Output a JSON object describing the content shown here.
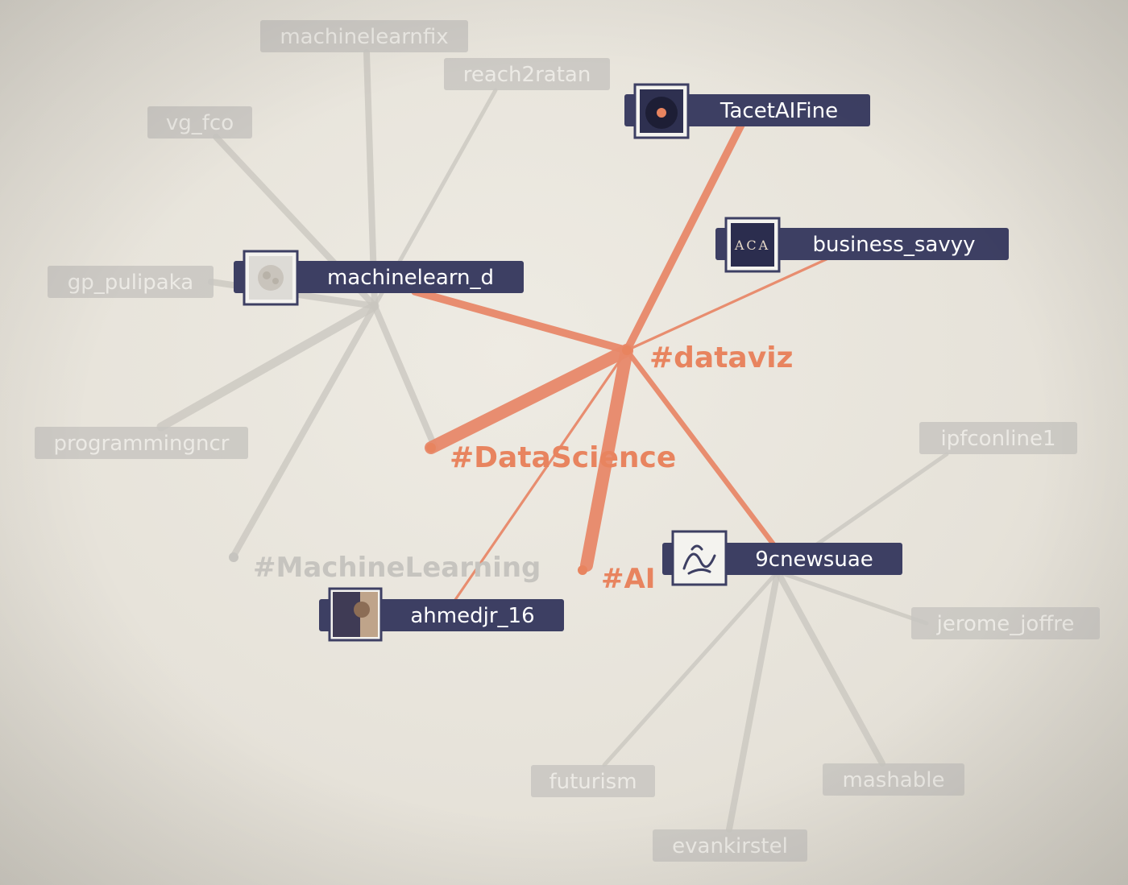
{
  "colors": {
    "background": "#e7e4dc",
    "dim_edge": "#c9c6bf",
    "dim_label_bg": "#c8c6c1",
    "dim_label_text": "#eceae5",
    "active_edge": "#e8896a",
    "active_label_bg": "#3d3f63",
    "active_label_text": "#ffffff",
    "hashtag_active": "#e8845f",
    "hashtag_dim": "#c6c4bf"
  },
  "nodes": {
    "machinelearnfix": {
      "label": "machinelearnfix",
      "kind": "user",
      "state": "dim"
    },
    "reach2ratan": {
      "label": "reach2ratan",
      "kind": "user",
      "state": "dim"
    },
    "vg_fco": {
      "label": "vg_fco",
      "kind": "user",
      "state": "dim"
    },
    "gp_pulipaka": {
      "label": "gp_pulipaka",
      "kind": "user",
      "state": "dim"
    },
    "programmingncr": {
      "label": "programmingncr",
      "kind": "user",
      "state": "dim"
    },
    "ipfconline1": {
      "label": "ipfconline1",
      "kind": "user",
      "state": "dim"
    },
    "jerome_joffre": {
      "label": "jerome_joffre",
      "kind": "user",
      "state": "dim"
    },
    "futurism": {
      "label": "futurism",
      "kind": "user",
      "state": "dim"
    },
    "mashable": {
      "label": "mashable",
      "kind": "user",
      "state": "dim"
    },
    "evankirstel": {
      "label": "evankirstel",
      "kind": "user",
      "state": "dim"
    },
    "TacetAIFine": {
      "label": "TacetAIFine",
      "kind": "user",
      "state": "active",
      "avatar": "record-avatar-icon"
    },
    "business_savyy": {
      "label": "business_savyy",
      "kind": "user",
      "state": "active",
      "avatar": "aca-logo-avatar-icon"
    },
    "machinelearn_d": {
      "label": "machinelearn_d",
      "kind": "user",
      "state": "active",
      "avatar": "brain-avatar-icon"
    },
    "9cnewsuae": {
      "label": "9cnewsuae",
      "kind": "user",
      "state": "active",
      "avatar": "signature-avatar-icon"
    },
    "ahmedjr_16": {
      "label": "ahmedjr_16",
      "kind": "user",
      "state": "active",
      "avatar": "portrait-avatar-icon"
    },
    "dataviz": {
      "label": "#dataviz",
      "kind": "hashtag",
      "state": "active"
    },
    "DataScience": {
      "label": "#DataScience",
      "kind": "hashtag",
      "state": "active"
    },
    "AI": {
      "label": "#AI",
      "kind": "hashtag",
      "state": "active"
    },
    "MachineLearning": {
      "label": "#MachineLearning",
      "kind": "hashtag",
      "state": "dim"
    }
  },
  "edges": [
    {
      "from": "machinelearn_d",
      "to": "machinelearnfix",
      "state": "dim",
      "weight": 2
    },
    {
      "from": "machinelearn_d",
      "to": "reach2ratan",
      "state": "dim",
      "weight": 1
    },
    {
      "from": "machinelearn_d",
      "to": "vg_fco",
      "state": "dim",
      "weight": 2
    },
    {
      "from": "machinelearn_d",
      "to": "gp_pulipaka",
      "state": "dim",
      "weight": 2
    },
    {
      "from": "machinelearn_d",
      "to": "programmingncr",
      "state": "dim",
      "weight": 3
    },
    {
      "from": "machinelearn_d",
      "to": "MachineLearning",
      "state": "dim",
      "weight": 2
    },
    {
      "from": "machinelearn_d",
      "to": "DataScience",
      "state": "dim",
      "weight": 2
    },
    {
      "from": "9cnewsuae",
      "to": "ipfconline1",
      "state": "dim",
      "weight": 1
    },
    {
      "from": "9cnewsuae",
      "to": "jerome_joffre",
      "state": "dim",
      "weight": 1
    },
    {
      "from": "9cnewsuae",
      "to": "futurism",
      "state": "dim",
      "weight": 1
    },
    {
      "from": "9cnewsuae",
      "to": "mashable",
      "state": "dim",
      "weight": 2
    },
    {
      "from": "9cnewsuae",
      "to": "evankirstel",
      "state": "dim",
      "weight": 2
    },
    {
      "from": "dataviz",
      "to": "TacetAIFine",
      "state": "active",
      "weight": 3
    },
    {
      "from": "dataviz",
      "to": "business_savyy",
      "state": "active",
      "weight": 1
    },
    {
      "from": "dataviz",
      "to": "machinelearn_d",
      "state": "active",
      "weight": 3
    },
    {
      "from": "dataviz",
      "to": "DataScience",
      "state": "active",
      "weight": 5
    },
    {
      "from": "dataviz",
      "to": "AI",
      "state": "active",
      "weight": 5
    },
    {
      "from": "dataviz",
      "to": "9cnewsuae",
      "state": "active",
      "weight": 2
    },
    {
      "from": "dataviz",
      "to": "ahmedjr_16",
      "state": "active",
      "weight": 1
    }
  ]
}
